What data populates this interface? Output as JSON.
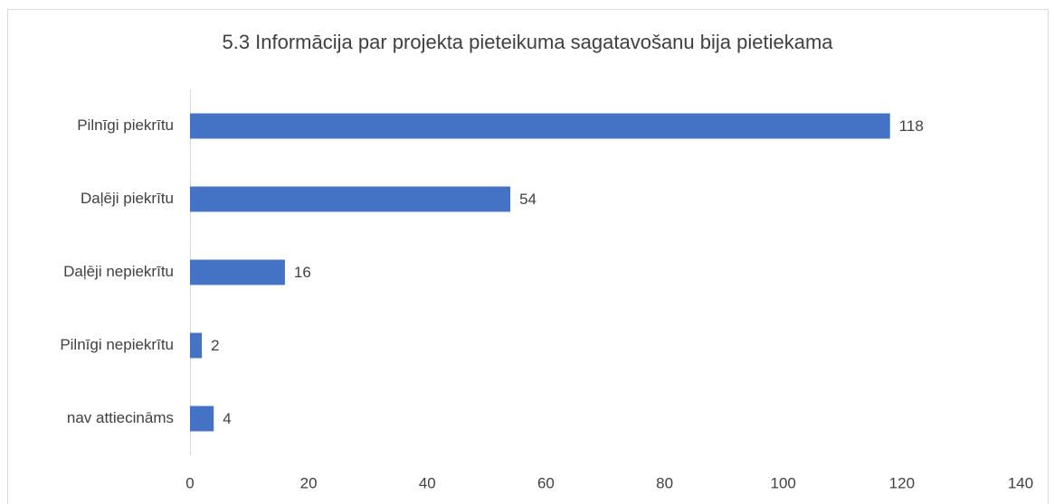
{
  "chart_data": {
    "type": "bar",
    "orientation": "horizontal",
    "title": "5.3 Informācija par projekta pieteikuma sagatavošanu bija pietiekama",
    "categories": [
      "Pilnīgi piekrītu",
      "Daļēji piekrītu",
      "Daļēji nepiekrītu",
      "Pilnīgi nepiekrītu",
      "nav attiecināms"
    ],
    "values": [
      118,
      54,
      16,
      2,
      4
    ],
    "color": "#4472c4",
    "xlim": [
      0,
      140
    ],
    "xticks": [
      0,
      20,
      40,
      60,
      80,
      100,
      120,
      140
    ],
    "grid": false
  }
}
